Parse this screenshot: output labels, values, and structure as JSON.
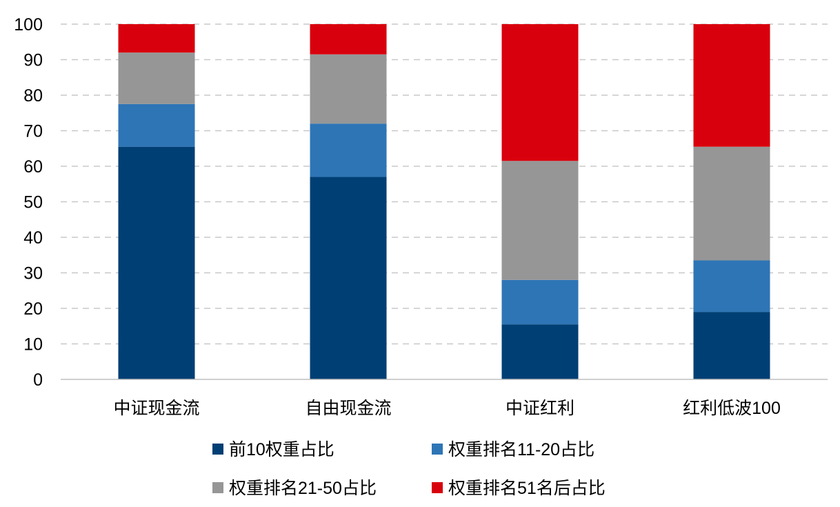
{
  "chart_data": {
    "type": "bar",
    "stacked": true,
    "categories": [
      "中证现金流",
      "自由现金流",
      "中证红利",
      "红利低波100"
    ],
    "series": [
      {
        "name": "前10权重占比",
        "color": "#003F74",
        "values": [
          65.5,
          57.0,
          15.5,
          19.0
        ]
      },
      {
        "name": "权重排名11-20占比",
        "color": "#2E75B6",
        "values": [
          12.0,
          15.0,
          12.5,
          14.5
        ]
      },
      {
        "name": "权重排名21-50占比",
        "color": "#969696",
        "values": [
          14.5,
          19.5,
          33.5,
          32.0
        ]
      },
      {
        "name": "权重排名51名后占比",
        "color": "#D9000D",
        "values": [
          8.0,
          8.5,
          38.5,
          34.5
        ]
      }
    ],
    "ylim": [
      0,
      100
    ],
    "yticks": [
      "0",
      "10",
      "20",
      "30",
      "40",
      "50",
      "60",
      "70",
      "80",
      "90",
      "100"
    ],
    "grid": true,
    "legend": "bottom"
  }
}
